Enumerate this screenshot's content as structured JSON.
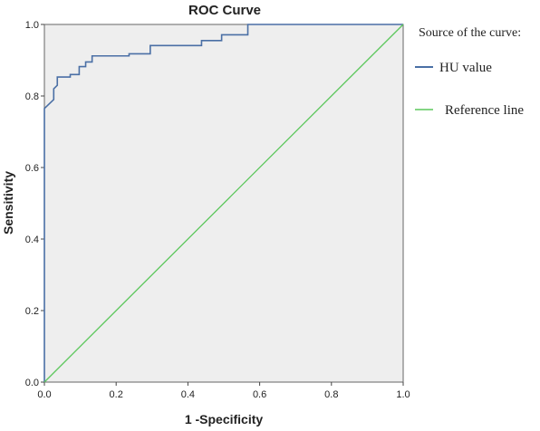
{
  "chart_data": {
    "type": "line",
    "title": "ROC Curve",
    "xlabel": "1 -Specificity",
    "ylabel": "Sensitivity",
    "xlim": [
      0,
      1
    ],
    "ylim": [
      0,
      1
    ],
    "xticks": [
      "0.0",
      "0.2",
      "0.4",
      "0.6",
      "0.8",
      "1.0"
    ],
    "yticks": [
      "0.0",
      "0.2",
      "0.4",
      "0.6",
      "0.8",
      "1.0"
    ],
    "grid": false,
    "legend": {
      "title": "Source of the curve:",
      "placement": "right"
    },
    "colors": {
      "plot_background": "#eeeeee",
      "hu_value": "#4a6fa5",
      "reference": "#5cc75c"
    },
    "series": [
      {
        "name": "HU value",
        "x": [
          0.0,
          0.0,
          0.026,
          0.026,
          0.036,
          0.036,
          0.072,
          0.072,
          0.097,
          0.097,
          0.115,
          0.115,
          0.133,
          0.133,
          0.236,
          0.236,
          0.295,
          0.295,
          0.438,
          0.438,
          0.494,
          0.494,
          0.567,
          0.567,
          0.59,
          0.59,
          1.0
        ],
        "y": [
          0.0,
          0.765,
          0.79,
          0.82,
          0.83,
          0.853,
          0.853,
          0.86,
          0.86,
          0.882,
          0.882,
          0.895,
          0.895,
          0.912,
          0.912,
          0.918,
          0.918,
          0.941,
          0.941,
          0.955,
          0.955,
          0.971,
          0.971,
          1.0,
          1.0,
          1.0,
          1.0
        ]
      },
      {
        "name": "Reference line",
        "x": [
          0,
          1
        ],
        "y": [
          0,
          1
        ]
      }
    ]
  }
}
